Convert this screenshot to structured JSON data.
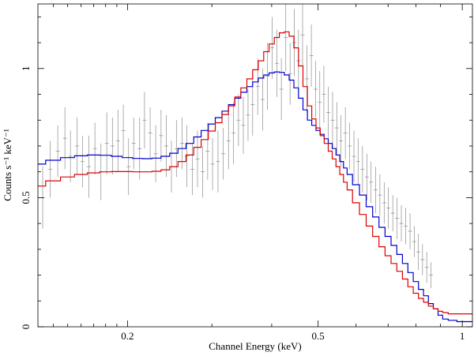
{
  "chart_data": {
    "type": "line",
    "title": "",
    "xlabel": "Channel Energy (keV)",
    "ylabel": "Counts s⁻¹ keV⁻¹",
    "xscale": "log",
    "xlim": [
      0.13,
      1.05
    ],
    "ylim": [
      0,
      1.25
    ],
    "x_ticks": [
      {
        "value": 0.2,
        "label": "0.2"
      },
      {
        "value": 0.5,
        "label": "0.5"
      },
      {
        "value": 1.0,
        "label": "1"
      }
    ],
    "y_ticks": [
      {
        "value": 0,
        "label": "0"
      },
      {
        "value": 0.5,
        "label": "0.5"
      },
      {
        "value": 1.0,
        "label": "1"
      }
    ],
    "x_minor_ticks": [
      0.14,
      0.15,
      0.16,
      0.17,
      0.18,
      0.19,
      0.3,
      0.4,
      0.6,
      0.7,
      0.8,
      0.9
    ],
    "series": [
      {
        "name": "model-blue",
        "color": "#0000cc",
        "x": [
          0.13,
          0.14,
          0.15,
          0.16,
          0.17,
          0.18,
          0.19,
          0.2,
          0.21,
          0.22,
          0.23,
          0.24,
          0.25,
          0.26,
          0.27,
          0.28,
          0.29,
          0.3,
          0.31,
          0.32,
          0.33,
          0.34,
          0.35,
          0.36,
          0.37,
          0.38,
          0.39,
          0.4,
          0.41,
          0.42,
          0.43,
          0.44,
          0.45,
          0.46,
          0.47,
          0.48,
          0.49,
          0.5,
          0.51,
          0.52,
          0.53,
          0.54,
          0.55,
          0.56,
          0.57,
          0.58,
          0.6,
          0.62,
          0.64,
          0.66,
          0.68,
          0.7,
          0.72,
          0.74,
          0.76,
          0.78,
          0.8,
          0.82,
          0.84,
          0.86,
          0.88,
          0.9,
          0.92,
          0.95,
          1.0,
          1.05
        ],
        "values": [
          0.63,
          0.645,
          0.655,
          0.662,
          0.665,
          0.664,
          0.66,
          0.655,
          0.652,
          0.651,
          0.653,
          0.66,
          0.672,
          0.69,
          0.71,
          0.735,
          0.76,
          0.785,
          0.81,
          0.835,
          0.86,
          0.885,
          0.908,
          0.93,
          0.948,
          0.963,
          0.975,
          0.983,
          0.987,
          0.985,
          0.975,
          0.955,
          0.925,
          0.885,
          0.84,
          0.8,
          0.78,
          0.76,
          0.745,
          0.728,
          0.71,
          0.69,
          0.665,
          0.64,
          0.615,
          0.59,
          0.55,
          0.51,
          0.465,
          0.425,
          0.385,
          0.35,
          0.315,
          0.28,
          0.245,
          0.21,
          0.175,
          0.145,
          0.12,
          0.09,
          0.07,
          0.045,
          0.03,
          0.025,
          0.02,
          0.02
        ]
      },
      {
        "name": "model-red",
        "color": "#dd0000",
        "x": [
          0.13,
          0.14,
          0.15,
          0.16,
          0.17,
          0.18,
          0.19,
          0.2,
          0.21,
          0.22,
          0.23,
          0.24,
          0.25,
          0.26,
          0.27,
          0.28,
          0.29,
          0.3,
          0.31,
          0.32,
          0.33,
          0.34,
          0.35,
          0.36,
          0.37,
          0.38,
          0.39,
          0.4,
          0.41,
          0.42,
          0.43,
          0.44,
          0.45,
          0.46,
          0.47,
          0.48,
          0.49,
          0.5,
          0.51,
          0.52,
          0.53,
          0.54,
          0.55,
          0.56,
          0.57,
          0.58,
          0.6,
          0.62,
          0.64,
          0.66,
          0.68,
          0.7,
          0.72,
          0.74,
          0.76,
          0.78,
          0.8,
          0.82,
          0.84,
          0.86,
          0.88,
          0.9,
          0.92,
          0.95,
          1.0,
          1.05
        ],
        "values": [
          0.545,
          0.565,
          0.58,
          0.59,
          0.596,
          0.6,
          0.601,
          0.601,
          0.6,
          0.6,
          0.602,
          0.608,
          0.62,
          0.64,
          0.665,
          0.695,
          0.725,
          0.758,
          0.79,
          0.822,
          0.855,
          0.89,
          0.925,
          0.96,
          0.995,
          1.03,
          1.065,
          1.095,
          1.12,
          1.138,
          1.142,
          1.125,
          1.08,
          1.01,
          0.93,
          0.855,
          0.805,
          0.77,
          0.74,
          0.71,
          0.68,
          0.65,
          0.62,
          0.59,
          0.56,
          0.53,
          0.48,
          0.435,
          0.39,
          0.35,
          0.31,
          0.275,
          0.245,
          0.215,
          0.185,
          0.155,
          0.13,
          0.11,
          0.095,
          0.08,
          0.07,
          0.06,
          0.055,
          0.05,
          0.05,
          0.05
        ]
      },
      {
        "name": "data-points",
        "color": "#8c8c8c",
        "x": [
          0.133,
          0.138,
          0.143,
          0.148,
          0.152,
          0.157,
          0.161,
          0.166,
          0.171,
          0.176,
          0.181,
          0.186,
          0.191,
          0.196,
          0.201,
          0.206,
          0.212,
          0.217,
          0.223,
          0.229,
          0.235,
          0.241,
          0.247,
          0.253,
          0.26,
          0.266,
          0.273,
          0.28,
          0.287,
          0.294,
          0.301,
          0.309,
          0.317,
          0.325,
          0.333,
          0.341,
          0.349,
          0.357,
          0.365,
          0.374,
          0.383,
          0.392,
          0.401,
          0.41,
          0.419,
          0.428,
          0.437,
          0.446,
          0.455,
          0.464,
          0.474,
          0.484,
          0.494,
          0.504,
          0.514,
          0.525,
          0.536,
          0.547,
          0.558,
          0.57,
          0.582,
          0.594,
          0.606,
          0.619,
          0.632,
          0.645,
          0.659,
          0.673,
          0.687,
          0.701,
          0.716,
          0.731,
          0.746,
          0.762,
          0.778,
          0.794,
          0.81,
          0.826,
          0.843,
          0.86
        ],
        "values": [
          0.5,
          0.61,
          0.68,
          0.73,
          0.66,
          0.7,
          0.64,
          0.62,
          0.69,
          0.6,
          0.71,
          0.7,
          0.72,
          0.76,
          0.62,
          0.71,
          0.69,
          0.8,
          0.75,
          0.67,
          0.74,
          0.7,
          0.62,
          0.69,
          0.71,
          0.66,
          0.61,
          0.65,
          0.6,
          0.68,
          0.63,
          0.64,
          0.67,
          0.72,
          0.75,
          0.8,
          0.78,
          0.82,
          0.86,
          0.93,
          0.88,
          0.97,
          1.08,
          1.02,
          0.92,
          1.12,
          0.98,
          1.1,
          1.03,
          1.13,
          0.96,
          1.05,
          0.92,
          0.87,
          0.9,
          0.83,
          0.8,
          0.77,
          0.72,
          0.75,
          0.7,
          0.66,
          0.64,
          0.61,
          0.58,
          0.56,
          0.53,
          0.51,
          0.48,
          0.46,
          0.44,
          0.42,
          0.4,
          0.39,
          0.37,
          0.33,
          0.29,
          0.26,
          0.23,
          0.2
        ],
        "errors": [
          0.12,
          0.11,
          0.1,
          0.12,
          0.1,
          0.11,
          0.1,
          0.12,
          0.1,
          0.11,
          0.12,
          0.11,
          0.12,
          0.1,
          0.11,
          0.1,
          0.12,
          0.11,
          0.1,
          0.11,
          0.1,
          0.12,
          0.1,
          0.11,
          0.1,
          0.12,
          0.1,
          0.11,
          0.1,
          0.11,
          0.1,
          0.12,
          0.1,
          0.11,
          0.12,
          0.1,
          0.11,
          0.1,
          0.12,
          0.11,
          0.12,
          0.13,
          0.12,
          0.13,
          0.12,
          0.13,
          0.12,
          0.13,
          0.12,
          0.12,
          0.13,
          0.12,
          0.11,
          0.12,
          0.11,
          0.1,
          0.11,
          0.1,
          0.1,
          0.1,
          0.09,
          0.1,
          0.09,
          0.09,
          0.09,
          0.08,
          0.09,
          0.08,
          0.08,
          0.08,
          0.07,
          0.08,
          0.07,
          0.07,
          0.07,
          0.06,
          0.07,
          0.06,
          0.06,
          0.05
        ]
      }
    ]
  }
}
